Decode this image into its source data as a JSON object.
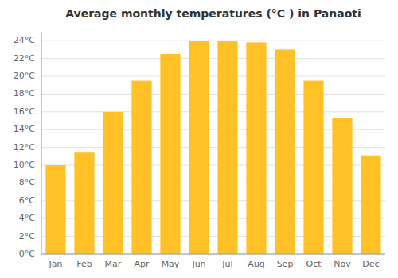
{
  "chart_data": {
    "type": "bar",
    "title": "Average monthly temperatures (°C ) in Panaoti",
    "categories": [
      "Jan",
      "Feb",
      "Mar",
      "Apr",
      "May",
      "Jun",
      "Jul",
      "Aug",
      "Sep",
      "Oct",
      "Nov",
      "Dec"
    ],
    "values": [
      10.0,
      11.5,
      16.0,
      19.5,
      22.5,
      24.0,
      24.0,
      23.8,
      23.0,
      19.5,
      15.3,
      11.1
    ],
    "color": "#FFC125",
    "ylim": [
      0,
      25
    ],
    "yticks": [
      {
        "value": 0,
        "label": "0°C"
      },
      {
        "value": 2,
        "label": "2°C"
      },
      {
        "value": 4,
        "label": "4°C"
      },
      {
        "value": 6,
        "label": "6°C"
      },
      {
        "value": 8,
        "label": "8°C"
      },
      {
        "value": 10,
        "label": "10°C"
      },
      {
        "value": 12,
        "label": "12°C"
      },
      {
        "value": 14,
        "label": "14°C"
      },
      {
        "value": 16,
        "label": "16°C"
      },
      {
        "value": 18,
        "label": "18°C"
      },
      {
        "value": 20,
        "label": "20°C"
      },
      {
        "value": 22,
        "label": "22°C"
      },
      {
        "value": 24,
        "label": "24°C"
      }
    ],
    "grid": true
  }
}
